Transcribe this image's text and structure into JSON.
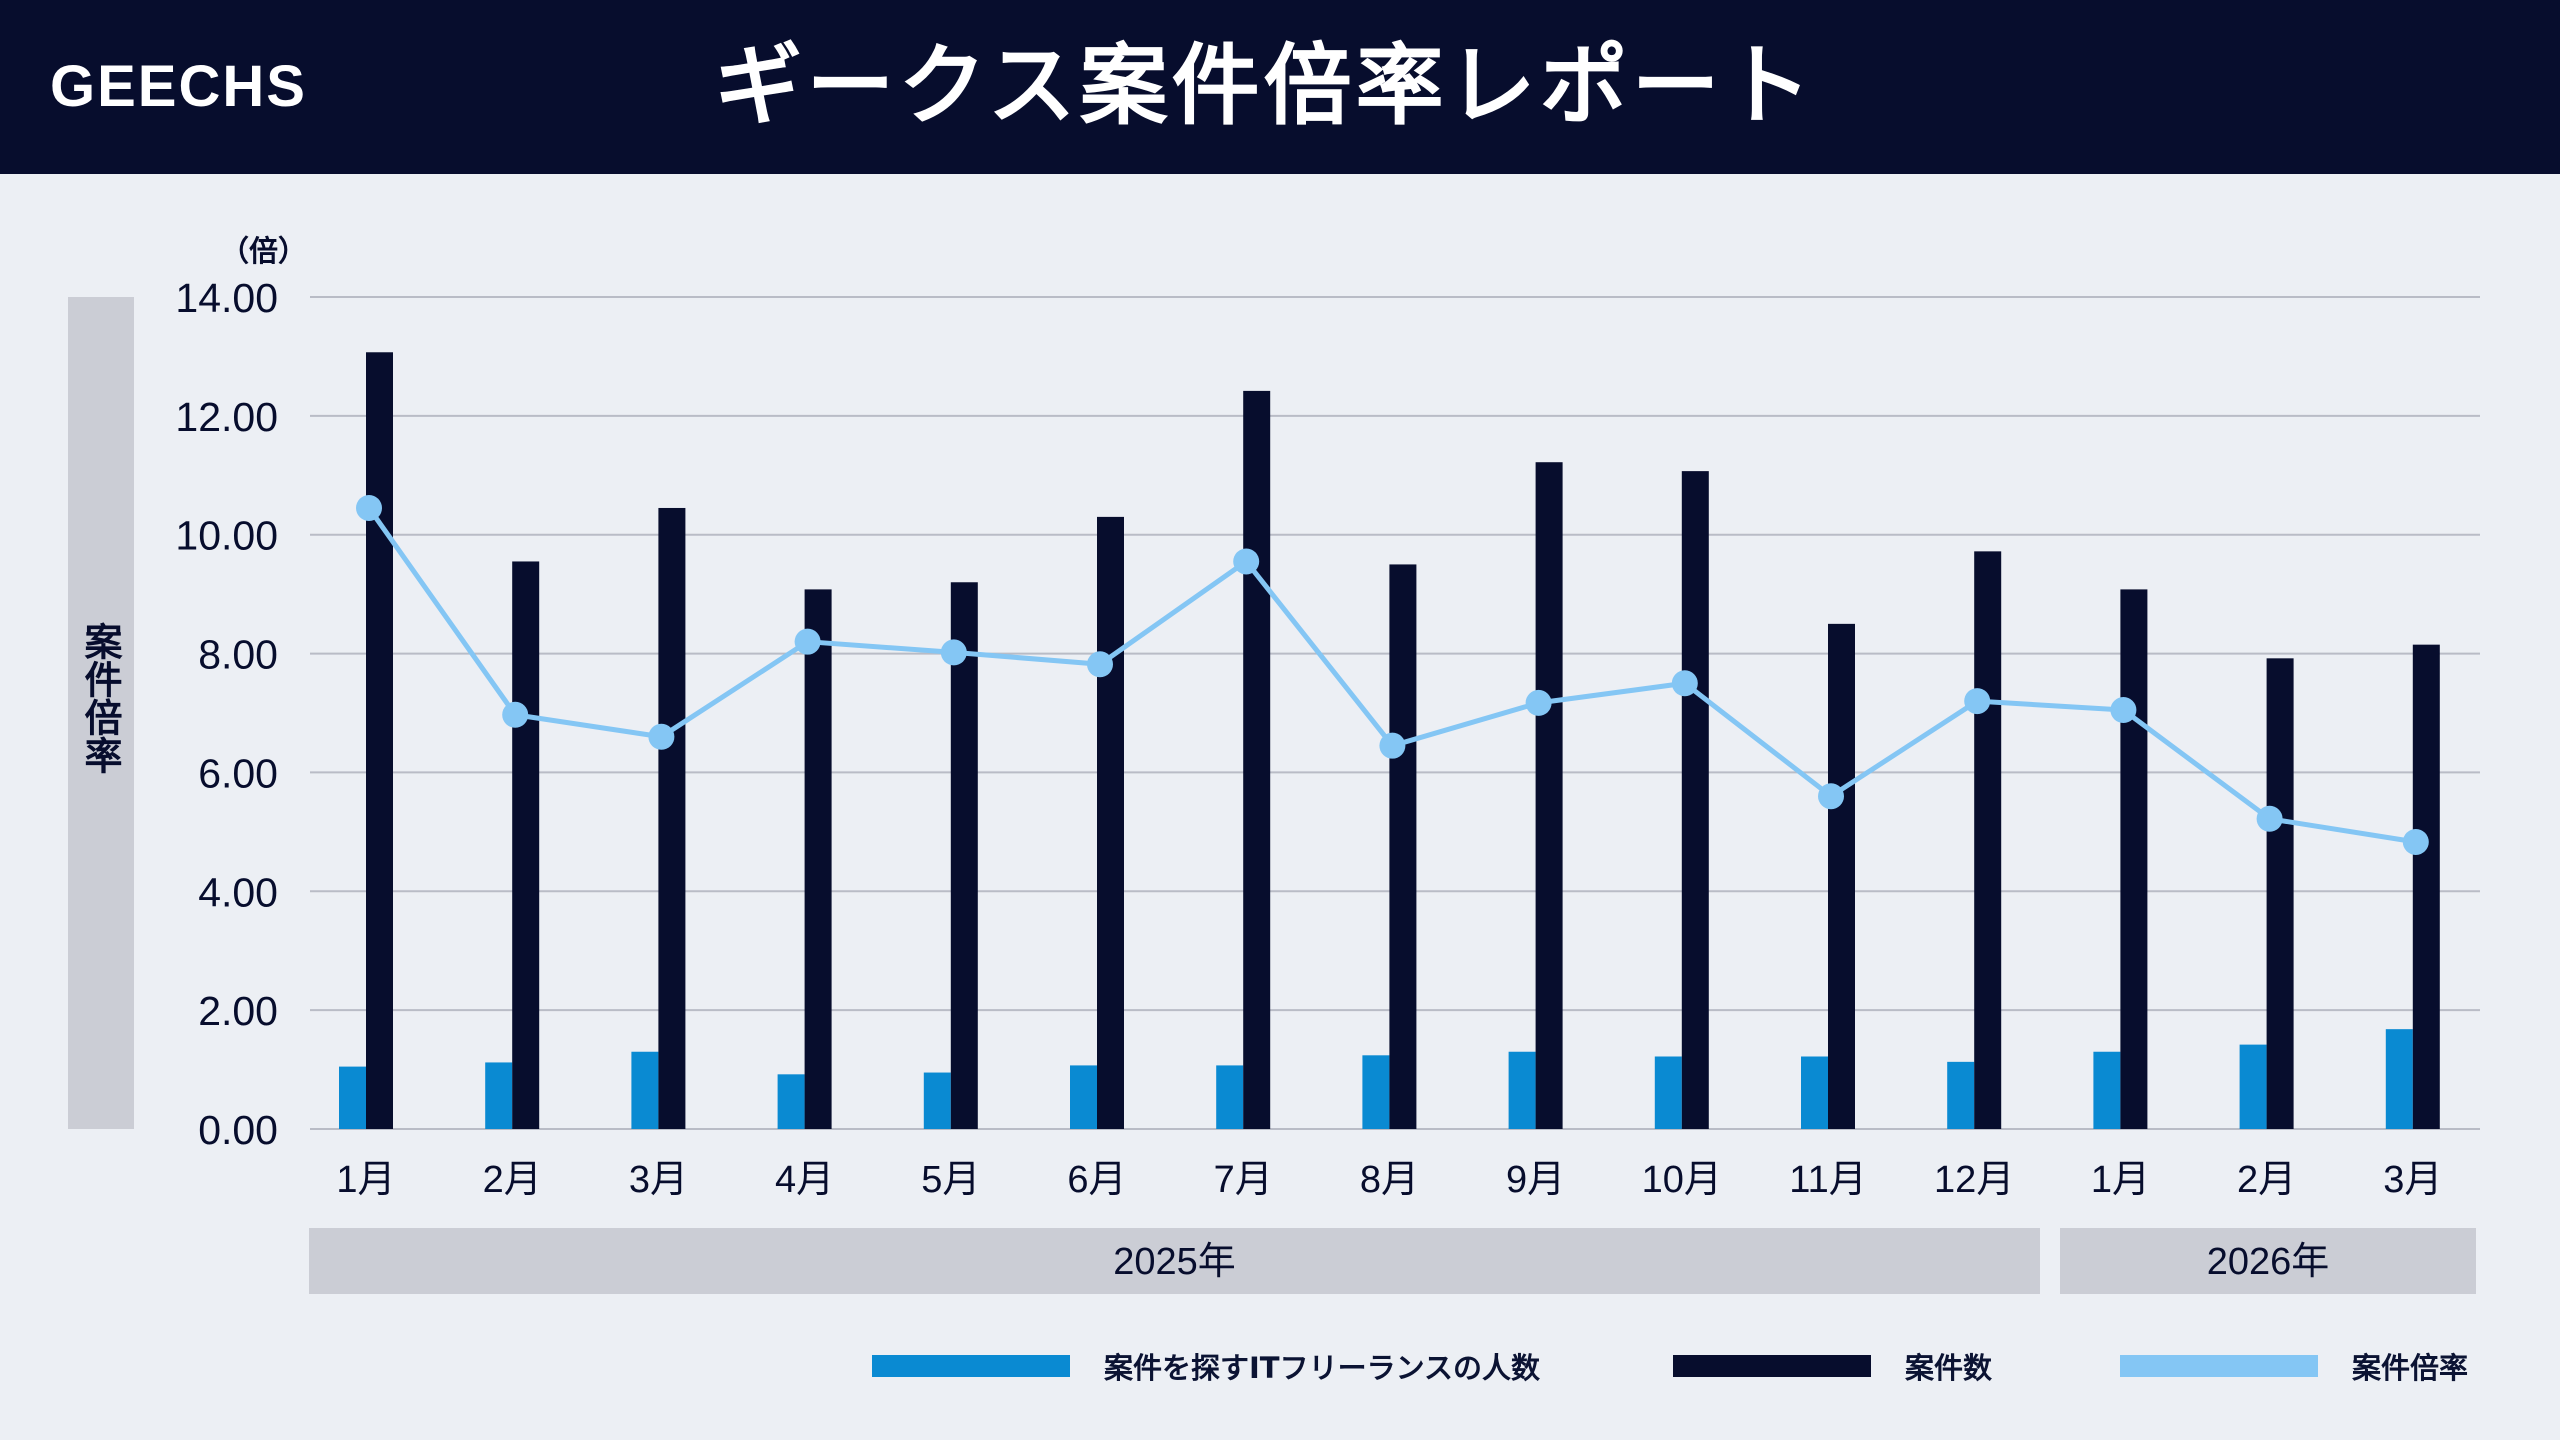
{
  "header": {
    "logo": "GEECHS",
    "title": "ギークス案件倍率レポート"
  },
  "colors": {
    "header_bg": "#070d2d",
    "freelancers": "#0a8ad2",
    "projects": "#070d2d",
    "ratio": "#84c6f4",
    "band": "#cbcdd5"
  },
  "chart_data": {
    "type": "bar",
    "title": "ギークス案件倍率レポート",
    "ylabel": "案件倍率",
    "yunit": "（倍）",
    "ylim": [
      0,
      14
    ],
    "yticks": [
      "0.00",
      "2.00",
      "4.00",
      "6.00",
      "8.00",
      "10.00",
      "12.00",
      "14.00"
    ],
    "grid": true,
    "legend_position": "bottom-right",
    "categories": [
      "1月",
      "2月",
      "3月",
      "4月",
      "5月",
      "6月",
      "7月",
      "8月",
      "9月",
      "10月",
      "11月",
      "12月",
      "1月",
      "2月",
      "3月"
    ],
    "year_groups": [
      {
        "label": "2025年",
        "count": 12
      },
      {
        "label": "2026年",
        "count": 3
      }
    ],
    "series": [
      {
        "name": "案件を探すITフリーランスの人数",
        "type": "bar",
        "color": "#0a8ad2",
        "values": [
          1.05,
          1.12,
          1.3,
          0.92,
          0.95,
          1.07,
          1.07,
          1.24,
          1.3,
          1.22,
          1.22,
          1.13,
          1.3,
          1.42,
          1.68
        ]
      },
      {
        "name": "案件数",
        "type": "bar",
        "color": "#070d2d",
        "values": [
          13.07,
          9.55,
          10.45,
          9.08,
          9.2,
          10.3,
          12.42,
          9.5,
          11.22,
          11.07,
          8.5,
          9.72,
          9.08,
          7.92,
          8.15
        ]
      },
      {
        "name": "案件倍率",
        "type": "line",
        "color": "#84c6f4",
        "values": [
          10.45,
          6.97,
          6.6,
          8.2,
          8.02,
          7.82,
          9.55,
          6.45,
          7.17,
          7.5,
          5.6,
          7.2,
          7.05,
          5.22,
          4.83
        ]
      }
    ]
  }
}
